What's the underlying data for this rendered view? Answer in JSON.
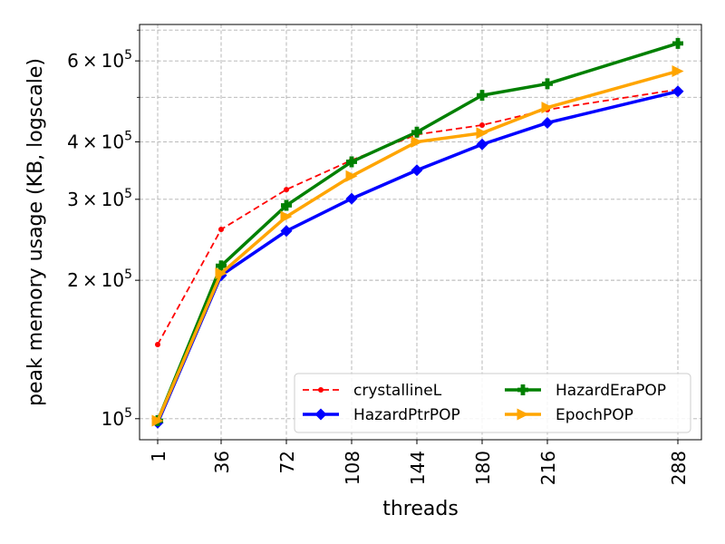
{
  "chart_data": {
    "type": "line",
    "title": "",
    "xlabel": "threads",
    "ylabel": "peak memory usage (KB, logscale)",
    "yscale": "log",
    "grid": true,
    "legend_position": "lower-right",
    "ylim": [
      90000,
      720000
    ],
    "xlim": [
      -9,
      301
    ],
    "x": [
      1,
      36,
      72,
      108,
      144,
      180,
      216,
      288
    ],
    "x_tick_labels": [
      "1",
      "36",
      "72",
      "108",
      "144",
      "180",
      "216",
      "288"
    ],
    "y_major_ticks": [
      {
        "value": 100000,
        "base": "10",
        "exp": "5"
      },
      {
        "value": 200000,
        "mantissa": "2",
        "base": "10",
        "exp": "5"
      },
      {
        "value": 300000,
        "mantissa": "3",
        "base": "10",
        "exp": "5"
      },
      {
        "value": 400000,
        "mantissa": "4",
        "base": "10",
        "exp": "5"
      },
      {
        "value": 600000,
        "mantissa": "6",
        "base": "10",
        "exp": "5"
      }
    ],
    "y_minor_gridlines": [
      500000,
      700000
    ],
    "series": [
      {
        "name": "crystallineL",
        "color": "#ff0000",
        "dash": true,
        "marker": "circle",
        "values": [
          145000,
          258000,
          315000,
          365000,
          415000,
          435000,
          470000,
          520000
        ]
      },
      {
        "name": "HazardPtrPOP",
        "color": "#0000ff",
        "dash": false,
        "marker": "diamond",
        "values": [
          98000,
          205000,
          256000,
          301000,
          347000,
          395000,
          440000,
          515000
        ]
      },
      {
        "name": "HazardEraPOP",
        "color": "#008000",
        "dash": false,
        "marker": "plus",
        "values": [
          99000,
          215000,
          291000,
          362000,
          420000,
          505000,
          535000,
          655000
        ]
      },
      {
        "name": "EpochPOP",
        "color": "#ffa500",
        "dash": false,
        "marker": "triangle-right",
        "values": [
          99000,
          207000,
          275000,
          337000,
          400000,
          418000,
          475000,
          570000
        ]
      }
    ]
  }
}
